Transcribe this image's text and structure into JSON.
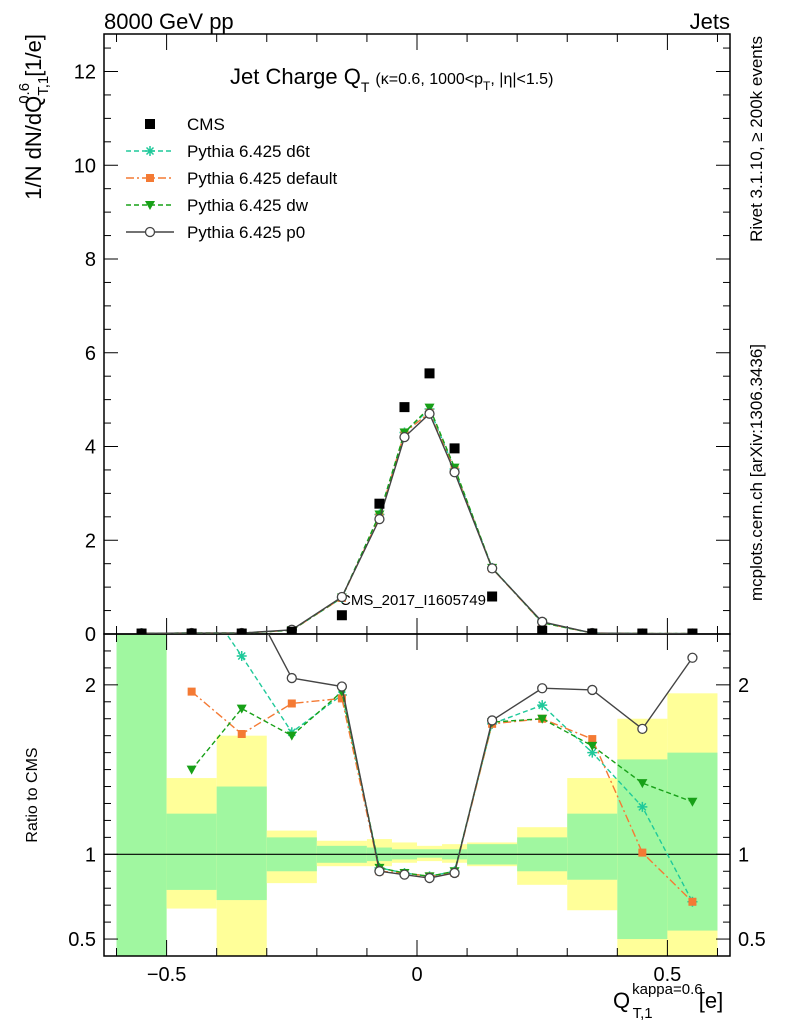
{
  "header": {
    "left": "8000 GeV pp",
    "right": "Jets"
  },
  "side_notes": {
    "rivet": "Rivet 3.1.10, ≥ 200k events",
    "mcplots": "mcplots.cern.ch [arXiv:1306.3436]"
  },
  "watermark": "CMS_2017_I1605749",
  "colors": {
    "cms": "#000000",
    "d6t": "#1fc99a",
    "default": "#f47a34",
    "dw": "#17a017",
    "p0": "#444444",
    "band_inner": "#a0f7a0",
    "band_outer": "#ffff99"
  },
  "chart_data": [
    {
      "type": "line",
      "panel": "main",
      "title": {
        "main": "Jet Charge Q",
        "sub": "T",
        "details_pre": "(κ=0.6, 1000<p",
        "details_sub": "T",
        "details_post": ", |η|<1.5)"
      },
      "ylabel": {
        "pre": "1/N dN/dQ",
        "sup": "0.6",
        "sub": "T,1",
        "post": " [1/e]"
      },
      "ylim": [
        0,
        12.8
      ],
      "xlim": [
        -0.625,
        0.625
      ],
      "yticks": [
        0,
        2,
        4,
        6,
        8,
        10,
        12
      ],
      "ytick_labels": [
        "0",
        "2",
        "4",
        "6",
        "8",
        "10",
        "12"
      ],
      "x": [
        -0.55,
        -0.45,
        -0.35,
        -0.25,
        -0.15,
        -0.075,
        -0.025,
        0.025,
        0.075,
        0.15,
        0.25,
        0.35,
        0.45,
        0.55
      ],
      "series": [
        {
          "name": "CMS",
          "key": "cms",
          "values": [
            0.01,
            0.01,
            0.01,
            0.05,
            0.4,
            2.78,
            4.84,
            5.56,
            3.96,
            0.8,
            0.07,
            0.01,
            0.01,
            0.01
          ]
        },
        {
          "name": "Pythia 6.425 d6t",
          "key": "d6t",
          "values": [
            0.015,
            0.02,
            0.02,
            0.08,
            0.77,
            2.55,
            4.3,
            4.8,
            3.52,
            1.41,
            0.25,
            0.02,
            0.01,
            0.01
          ]
        },
        {
          "name": "Pythia 6.425 default",
          "key": "default",
          "values": [
            0.015,
            0.02,
            0.02,
            0.08,
            0.77,
            2.5,
            4.3,
            4.72,
            3.5,
            1.4,
            0.24,
            0.02,
            0.01,
            0.01
          ]
        },
        {
          "name": "Pythia 6.425 dw",
          "key": "dw",
          "values": [
            0.015,
            0.02,
            0.02,
            0.08,
            0.78,
            2.55,
            4.3,
            4.83,
            3.55,
            1.41,
            0.24,
            0.02,
            0.01,
            0.01
          ]
        },
        {
          "name": "Pythia 6.425 p0",
          "key": "p0",
          "values": [
            0.015,
            0.02,
            0.02,
            0.09,
            0.79,
            2.45,
            4.2,
            4.7,
            3.45,
            1.4,
            0.26,
            0.02,
            0.01,
            0.01
          ]
        }
      ],
      "legend_position": "top-left"
    },
    {
      "type": "line",
      "panel": "ratio",
      "ylabel": "Ratio to CMS",
      "ylim": [
        0.4,
        2.3
      ],
      "xlim": [
        -0.625,
        0.625
      ],
      "yticks": [
        0.5,
        1,
        2
      ],
      "ytick_labels": [
        "0.5",
        "1",
        "2"
      ],
      "xticks": [
        -0.5,
        0,
        0.5
      ],
      "xtick_labels": [
        "−0.5",
        "0",
        "0.5"
      ],
      "xlabel": {
        "pre": "Q",
        "sup": "kappa=0.6",
        "sub": "T,1",
        "post": " [e]"
      },
      "bins": [
        {
          "lo": -0.6,
          "hi": -0.5,
          "inner": [
            0.4,
            2.3
          ],
          "outer": [
            0.4,
            2.3
          ]
        },
        {
          "lo": -0.5,
          "hi": -0.4,
          "inner": [
            0.79,
            1.24
          ],
          "outer": [
            0.68,
            1.45
          ]
        },
        {
          "lo": -0.4,
          "hi": -0.3,
          "inner": [
            0.73,
            1.4
          ],
          "outer": [
            0.4,
            1.7
          ]
        },
        {
          "lo": -0.3,
          "hi": -0.2,
          "inner": [
            0.9,
            1.1
          ],
          "outer": [
            0.83,
            1.14
          ]
        },
        {
          "lo": -0.2,
          "hi": -0.1,
          "inner": [
            0.95,
            1.05
          ],
          "outer": [
            0.93,
            1.08
          ]
        },
        {
          "lo": -0.1,
          "hi": -0.05,
          "inner": [
            0.96,
            1.04
          ],
          "outer": [
            0.93,
            1.09
          ]
        },
        {
          "lo": -0.05,
          "hi": 0.0,
          "inner": [
            0.97,
            1.03
          ],
          "outer": [
            0.95,
            1.07
          ]
        },
        {
          "lo": 0.0,
          "hi": 0.05,
          "inner": [
            0.98,
            1.03
          ],
          "outer": [
            0.96,
            1.05
          ]
        },
        {
          "lo": 0.05,
          "hi": 0.1,
          "inner": [
            0.97,
            1.03
          ],
          "outer": [
            0.95,
            1.06
          ]
        },
        {
          "lo": 0.1,
          "hi": 0.2,
          "inner": [
            0.94,
            1.06
          ],
          "outer": [
            0.93,
            1.07
          ]
        },
        {
          "lo": 0.2,
          "hi": 0.3,
          "inner": [
            0.9,
            1.1
          ],
          "outer": [
            0.82,
            1.16
          ]
        },
        {
          "lo": 0.3,
          "hi": 0.4,
          "inner": [
            0.85,
            1.24
          ],
          "outer": [
            0.67,
            1.45
          ]
        },
        {
          "lo": 0.4,
          "hi": 0.5,
          "inner": [
            0.5,
            1.56
          ],
          "outer": [
            0.4,
            1.8
          ]
        },
        {
          "lo": 0.5,
          "hi": 0.6,
          "inner": [
            0.55,
            1.6
          ],
          "outer": [
            0.4,
            1.95
          ]
        }
      ],
      "x": [
        -0.45,
        -0.35,
        -0.25,
        -0.15,
        -0.075,
        -0.025,
        0.025,
        0.075,
        0.15,
        0.25,
        0.35,
        0.45,
        0.55
      ],
      "series": [
        {
          "name": "Pythia 6.425 d6t",
          "key": "d6t",
          "values": [
            null,
            2.17,
            1.72,
            1.94,
            0.92,
            0.89,
            0.87,
            0.9,
            1.77,
            1.88,
            1.6,
            1.28,
            0.72
          ]
        },
        {
          "name": "Pythia 6.425 default",
          "key": "default",
          "values": [
            1.96,
            1.71,
            1.89,
            1.92,
            0.9,
            0.89,
            0.87,
            0.89,
            1.77,
            1.8,
            1.68,
            1.01,
            0.72
          ]
        },
        {
          "name": "Pythia 6.425 dw",
          "key": "dw",
          "values": [
            1.5,
            1.86,
            1.7,
            1.96,
            0.92,
            0.89,
            0.87,
            0.9,
            1.78,
            1.8,
            1.64,
            1.42,
            1.31
          ]
        },
        {
          "name": "Pythia 6.425 p0",
          "key": "p0",
          "values": [
            null,
            null,
            2.04,
            1.99,
            0.9,
            0.88,
            0.86,
            0.89,
            1.79,
            1.98,
            1.97,
            1.74,
            2.16
          ]
        }
      ]
    }
  ]
}
